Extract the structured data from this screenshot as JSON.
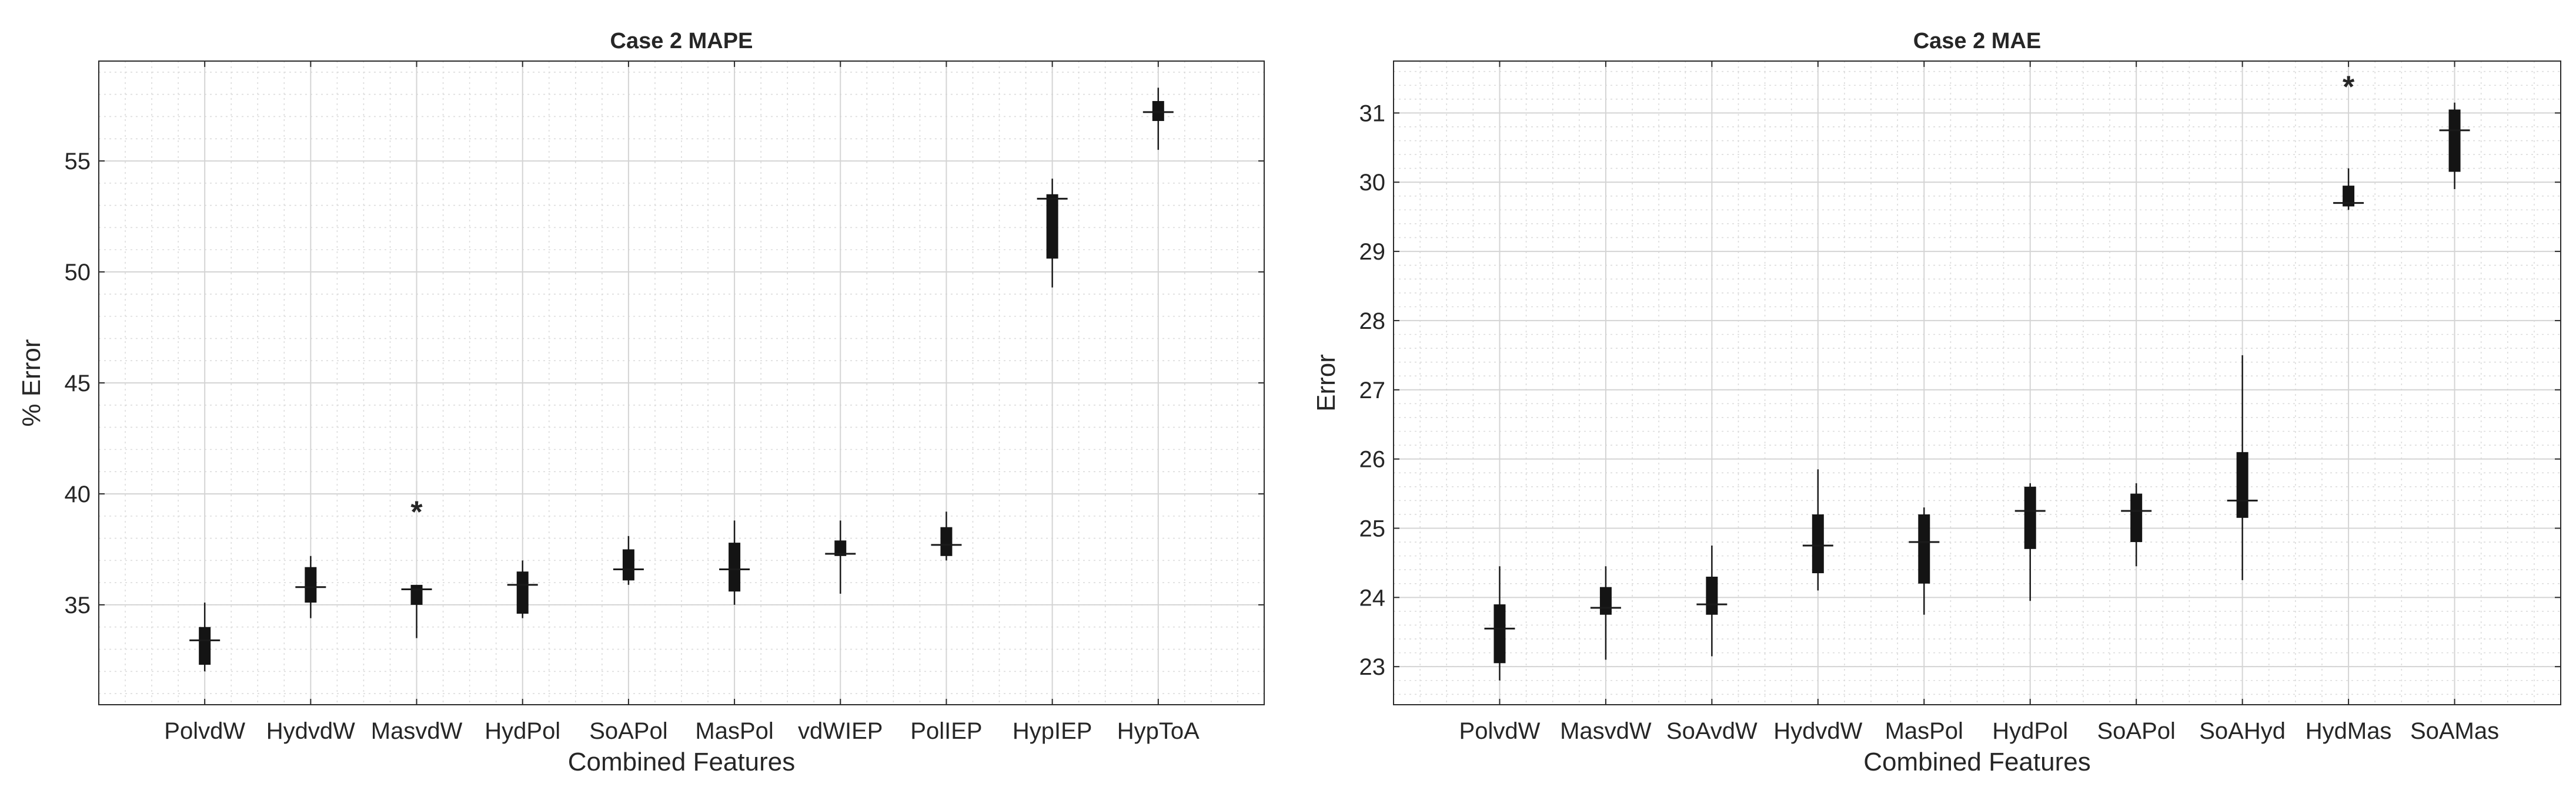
{
  "chart_data": [
    {
      "type": "box",
      "title": "Case 2 MAPE",
      "xlabel": "Combined Features",
      "ylabel": "% Error",
      "ylim": [
        30.5,
        59.5
      ],
      "yticks": [
        35,
        40,
        45,
        50,
        55
      ],
      "grid": true,
      "categories": [
        "PolvdW",
        "HydvdW",
        "MasvdW",
        "HydPol",
        "SoAPol",
        "MasPol",
        "vdWIEP",
        "PolIEP",
        "HypIEP",
        "HypToA"
      ],
      "boxes": [
        {
          "whisker_low": 32.0,
          "q1": 32.3,
          "median": 33.4,
          "q3": 34.0,
          "whisker_high": 35.1,
          "outliers": []
        },
        {
          "whisker_low": 34.4,
          "q1": 35.1,
          "median": 35.8,
          "q3": 36.7,
          "whisker_high": 37.2,
          "outliers": []
        },
        {
          "whisker_low": 33.5,
          "q1": 35.0,
          "median": 35.7,
          "q3": 35.9,
          "whisker_high": 35.9,
          "outliers": [
            39.4
          ]
        },
        {
          "whisker_low": 34.4,
          "q1": 34.6,
          "median": 35.9,
          "q3": 36.5,
          "whisker_high": 37.0,
          "outliers": []
        },
        {
          "whisker_low": 35.9,
          "q1": 36.1,
          "median": 36.6,
          "q3": 37.5,
          "whisker_high": 38.1,
          "outliers": []
        },
        {
          "whisker_low": 35.0,
          "q1": 35.6,
          "median": 36.6,
          "q3": 37.8,
          "whisker_high": 38.8,
          "outliers": []
        },
        {
          "whisker_low": 35.5,
          "q1": 37.2,
          "median": 37.3,
          "q3": 37.9,
          "whisker_high": 38.8,
          "outliers": []
        },
        {
          "whisker_low": 37.0,
          "q1": 37.2,
          "median": 37.7,
          "q3": 38.5,
          "whisker_high": 39.2,
          "outliers": []
        },
        {
          "whisker_low": 49.3,
          "q1": 50.6,
          "median": 53.3,
          "q3": 53.5,
          "whisker_high": 54.2,
          "outliers": []
        },
        {
          "whisker_low": 55.5,
          "q1": 56.8,
          "median": 57.2,
          "q3": 57.7,
          "whisker_high": 58.3,
          "outliers": []
        }
      ]
    },
    {
      "type": "box",
      "title": "Case 2 MAE",
      "xlabel": "Combined Features",
      "ylabel": "Error",
      "ylim": [
        22.45,
        31.75
      ],
      "yticks": [
        23,
        24,
        25,
        26,
        27,
        28,
        29,
        30,
        31
      ],
      "grid": true,
      "categories": [
        "PolvdW",
        "MasvdW",
        "SoAvdW",
        "HydvdW",
        "MasPol",
        "HydPol",
        "SoAPol",
        "SoAHyd",
        "HydMas",
        "SoAMas"
      ],
      "boxes": [
        {
          "whisker_low": 22.8,
          "q1": 23.05,
          "median": 23.55,
          "q3": 23.9,
          "whisker_high": 24.45,
          "outliers": []
        },
        {
          "whisker_low": 23.1,
          "q1": 23.75,
          "median": 23.85,
          "q3": 24.15,
          "whisker_high": 24.45,
          "outliers": []
        },
        {
          "whisker_low": 23.15,
          "q1": 23.75,
          "median": 23.9,
          "q3": 24.3,
          "whisker_high": 24.75,
          "outliers": []
        },
        {
          "whisker_low": 24.1,
          "q1": 24.35,
          "median": 24.75,
          "q3": 25.2,
          "whisker_high": 25.85,
          "outliers": []
        },
        {
          "whisker_low": 23.75,
          "q1": 24.2,
          "median": 24.8,
          "q3": 25.2,
          "whisker_high": 25.3,
          "outliers": []
        },
        {
          "whisker_low": 23.95,
          "q1": 24.7,
          "median": 25.25,
          "q3": 25.6,
          "whisker_high": 25.65,
          "outliers": []
        },
        {
          "whisker_low": 24.45,
          "q1": 24.8,
          "median": 25.25,
          "q3": 25.5,
          "whisker_high": 25.65,
          "outliers": []
        },
        {
          "whisker_low": 24.25,
          "q1": 25.15,
          "median": 25.4,
          "q3": 26.1,
          "whisker_high": 27.5,
          "outliers": []
        },
        {
          "whisker_low": 29.6,
          "q1": 29.65,
          "median": 29.7,
          "q3": 29.95,
          "whisker_high": 30.2,
          "outliers": [
            31.45
          ]
        },
        {
          "whisker_low": 29.9,
          "q1": 30.15,
          "median": 30.75,
          "q3": 31.05,
          "whisker_high": 31.15,
          "outliers": []
        }
      ]
    }
  ]
}
